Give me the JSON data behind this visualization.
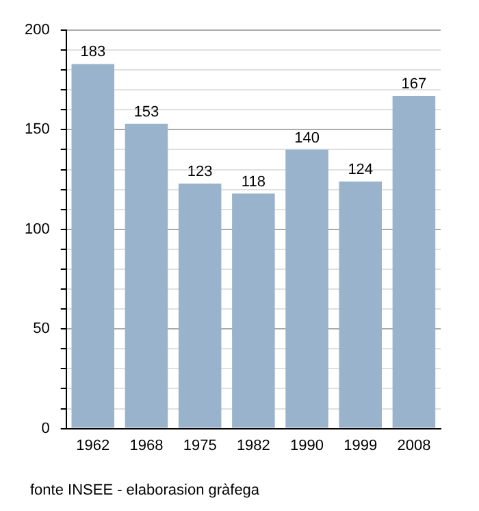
{
  "chart_data": {
    "type": "bar",
    "categories": [
      "1962",
      "1968",
      "1975",
      "1982",
      "1990",
      "1999",
      "2008"
    ],
    "values": [
      183,
      153,
      123,
      118,
      140,
      124,
      167
    ],
    "color": "#99b3cc",
    "data_labels": true,
    "ylim": [
      0,
      200
    ],
    "yticks": [
      0,
      {
        "value": 10,
        "label": null
      },
      {
        "value": 20,
        "label": null
      },
      {
        "value": 30,
        "label": null
      },
      {
        "value": 40,
        "label": null
      },
      50,
      {
        "value": 60,
        "label": null
      },
      {
        "value": 70,
        "label": null
      },
      {
        "value": 80,
        "label": null
      },
      {
        "value": 90,
        "label": null
      },
      100,
      {
        "value": 110,
        "label": null
      },
      {
        "value": 120,
        "label": null
      },
      {
        "value": 130,
        "label": null
      },
      {
        "value": 140,
        "label": null
      },
      150,
      {
        "value": 160,
        "label": null
      },
      {
        "value": 170,
        "label": null
      },
      {
        "value": 180,
        "label": null
      },
      {
        "value": 190,
        "label": null
      },
      200
    ],
    "grid": "y",
    "annotations": [
      "fonte INSEE - elaborasion gràfega"
    ]
  }
}
